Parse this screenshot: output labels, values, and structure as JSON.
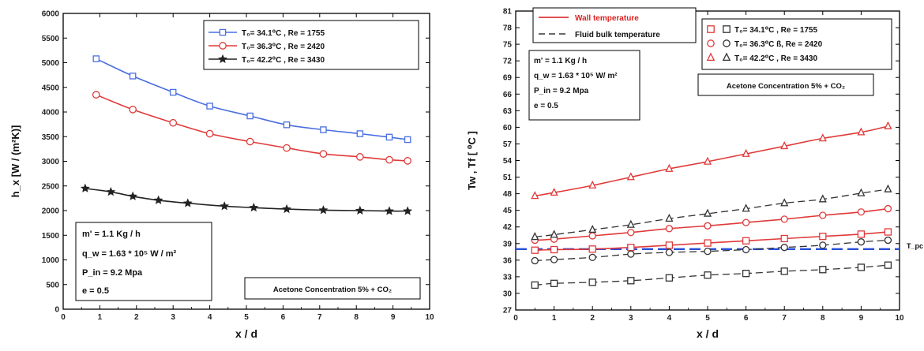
{
  "chart_data": [
    {
      "type": "line",
      "xlabel": "x / d",
      "ylabel": "h_x [W / (m²K)]",
      "xlim": [
        0,
        10
      ],
      "ylim": [
        0,
        6000
      ],
      "xticks": [
        "0",
        "1",
        "2",
        "3",
        "4",
        "5",
        "6",
        "7",
        "8",
        "9",
        "10"
      ],
      "yticks": [
        "0",
        "500",
        "1000",
        "1500",
        "2000",
        "2500",
        "3000",
        "3500",
        "4000",
        "4500",
        "5000",
        "5500",
        "6000"
      ],
      "grid": false,
      "legend_position": "top-right",
      "series": [
        {
          "name": "T₀= 34.1⁰C , Re = 1755",
          "color": "#4a6ee0",
          "marker": "square",
          "x": [
            0.9,
            1.9,
            3.0,
            4.0,
            5.1,
            6.1,
            7.1,
            8.1,
            8.9,
            9.4
          ],
          "y": [
            5080,
            4730,
            4400,
            4120,
            3920,
            3740,
            3640,
            3560,
            3490,
            3440
          ]
        },
        {
          "name": "T₀= 36.3⁰C , Re = 2420",
          "color": "#e03a3a",
          "marker": "circle",
          "x": [
            0.9,
            1.9,
            3.0,
            4.0,
            5.1,
            6.1,
            7.1,
            8.1,
            8.9,
            9.4
          ],
          "y": [
            4350,
            4050,
            3780,
            3560,
            3400,
            3270,
            3150,
            3090,
            3030,
            3010
          ]
        },
        {
          "name": "T₀= 42.2⁰C , Re = 3430",
          "color": "#222222",
          "marker": "star",
          "x": [
            0.6,
            1.3,
            1.9,
            2.6,
            3.4,
            4.4,
            5.2,
            6.1,
            7.1,
            8.1,
            8.9,
            9.4
          ],
          "y": [
            2450,
            2380,
            2290,
            2210,
            2150,
            2090,
            2060,
            2030,
            2010,
            2000,
            1990,
            1990
          ]
        }
      ],
      "info_box": {
        "lines": [
          "m' = 1.1 Kg / h",
          "q_w = 1.63 * 10⁵ W / m²",
          "P_in = 9.2 Mpa",
          "e = 0.5"
        ],
        "concentration": "Acetone Concentration 5% + CO₂"
      }
    },
    {
      "type": "line",
      "xlabel": "x / d",
      "ylabel": "Tw , Tf [ ⁰C ]",
      "xlim": [
        0,
        10
      ],
      "ylim": [
        27,
        81
      ],
      "xticks": [
        "0",
        "1",
        "2",
        "3",
        "4",
        "5",
        "6",
        "7",
        "8",
        "9",
        "10"
      ],
      "yticks": [
        "27",
        "30",
        "33",
        "36",
        "39",
        "42",
        "45",
        "48",
        "51",
        "54",
        "57",
        "60",
        "63",
        "66",
        "69",
        "72",
        "75",
        "78",
        "81"
      ],
      "grid": false,
      "line_legend": [
        {
          "label": "Wall temperature",
          "style": "solid",
          "color": "#e03a3a"
        },
        {
          "label": "Fluid bulk temperature",
          "style": "dashed",
          "color": "#555555"
        }
      ],
      "marker_legend": [
        "T₀= 34.1⁰C , Re = 1755",
        "T₀= 36.3⁰C ß, Re = 2420",
        "T₀= 42.2⁰C , Re = 3430"
      ],
      "info_lines": [
        "m' = 1.1 Kg / h",
        "q_w = 1.63 * 10⁵ W/ m²",
        "P_in = 9.2 Mpa",
        "e = 0.5"
      ],
      "concentration": "Acetone Concentration 5% + CO₂",
      "pseudo_critical_label": "T_pc",
      "pseudo_critical_y": 38.0,
      "x_points": [
        0.5,
        1.0,
        2.0,
        3.0,
        4.0,
        5.0,
        6.0,
        7.0,
        8.0,
        9.0,
        9.7
      ],
      "series": [
        {
          "name": "T₀= 34.1⁰C , Re = 1755",
          "kind": "wall",
          "marker": "square",
          "color": "#e03a3a",
          "y": [
            37.8,
            37.9,
            38.0,
            38.3,
            38.7,
            39.1,
            39.5,
            39.9,
            40.3,
            40.7,
            41.1
          ]
        },
        {
          "name": "T₀= 36.3⁰C ß, Re = 2420",
          "kind": "wall",
          "marker": "circle",
          "color": "#e03a3a",
          "y": [
            39.6,
            39.8,
            40.4,
            41.0,
            41.7,
            42.2,
            42.8,
            43.4,
            44.1,
            44.7,
            45.3
          ]
        },
        {
          "name": "T₀= 42.2⁰C , Re = 3430",
          "kind": "wall",
          "marker": "triangle",
          "color": "#e03a3a",
          "y": [
            47.6,
            48.2,
            49.5,
            51.0,
            52.5,
            53.8,
            55.2,
            56.6,
            58.0,
            59.1,
            60.2
          ]
        },
        {
          "name": "T₀= 34.1⁰C , Re = 1755",
          "kind": "fluid",
          "marker": "square",
          "color": "#333333",
          "y": [
            31.5,
            31.8,
            32.0,
            32.3,
            32.8,
            33.3,
            33.6,
            34.0,
            34.3,
            34.7,
            35.1
          ]
        },
        {
          "name": "T₀= 36.3⁰C ß, Re = 2420",
          "kind": "fluid",
          "marker": "circle",
          "color": "#333333",
          "y": [
            35.9,
            36.1,
            36.5,
            37.1,
            37.4,
            37.6,
            37.9,
            38.3,
            38.7,
            39.3,
            39.6
          ]
        },
        {
          "name": "T₀= 42.2⁰C , Re = 3430",
          "kind": "fluid",
          "marker": "triangle",
          "color": "#333333",
          "y": [
            40.2,
            40.6,
            41.5,
            42.4,
            43.5,
            44.4,
            45.3,
            46.3,
            47.0,
            48.1,
            48.8
          ]
        }
      ]
    }
  ]
}
